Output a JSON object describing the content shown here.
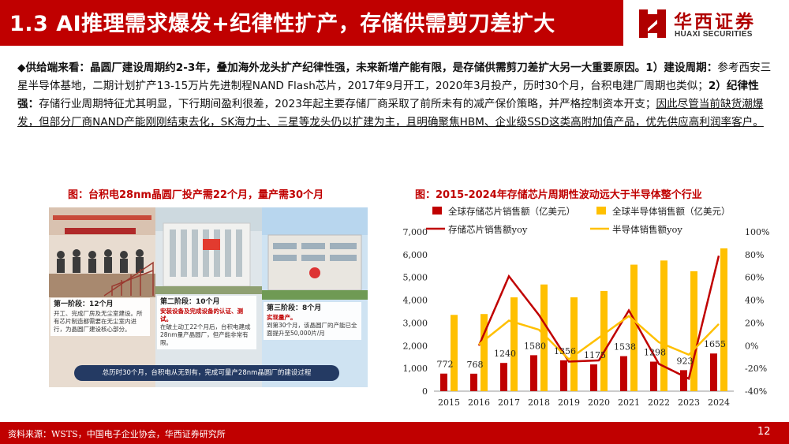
{
  "header": {
    "title": "1.3 AI推理需求爆发+纪律性扩产，存储供需剪刀差扩大"
  },
  "logo": {
    "name_cn": "华西证券",
    "name_en": "HUAXI SECURITIES"
  },
  "body": {
    "bullet": "◆",
    "s1": "供给端来看：晶圆厂建设周期约2-3年，叠加海外龙头扩产纪律性强，未来新增产能有限，是存储供需剪刀差扩大另一大重要原因。",
    "s2": "1）建设周期：",
    "s3": "参考西安三星半导体基地，二期计划扩产13-15万片先进制程NAND Flash芯片，2017年9月开工，2020年3月投产，历时30个月，台积电建厂周期也类似；",
    "s4": "2）纪律性强：",
    "s5": "存储行业周期特征尤其明显，下行期间盈利很差，2023年起主要存储厂商采取了前所未有的减产保价策略，并严格控制资本开支；",
    "s6": "因此尽管当前缺货潮爆发，但部分厂商NAND产能刚刚结束去化，SK海力士、三星等龙头仍以扩建为主，且明确聚焦HBM、企业级SSD这类高附加值产品，优先供应高利润率客户。"
  },
  "figure_left": {
    "caption": "图：台积电28nm晶圆厂投产需22个月，量产需30个月",
    "stages": [
      {
        "title": "第一阶段：12个月",
        "desc": "开工、完成厂房及无尘室建设。所有芯片制造都需要在无尘室内进行，为晶圆厂建设核心部分。",
        "highlight": ""
      },
      {
        "title": "第二阶段：10个月",
        "desc": "在破土动工22个月后，台积电建成28nm量产晶圆厂，但产能非常有限。",
        "highlight": "安装设备及完成设备的认证、测试。"
      },
      {
        "title": "第三阶段：8个月",
        "desc": "到第30个月，该晶圆厂的产能已全面提升至50,000片/月",
        "highlight": "实现量产。"
      }
    ],
    "banner": "总历时30个月，台积电从无到有，完成可量产28nm晶圆厂的建设过程"
  },
  "figure_right": {
    "caption": "图：2015-2024年存储芯片周期性波动远大于半导体整个行业"
  },
  "chart_data": {
    "type": "bar",
    "categories": [
      "2015",
      "2016",
      "2017",
      "2018",
      "2019",
      "2020",
      "2021",
      "2022",
      "2023",
      "2024"
    ],
    "series": [
      {
        "name": "全球存储芯片销售额（亿美元）",
        "kind": "bar",
        "axis": "left",
        "color": "#c00000",
        "values": [
          772,
          768,
          1240,
          1580,
          1356,
          1175,
          1538,
          1298,
          923,
          1655
        ]
      },
      {
        "name": "全球半导体销售额（亿美元）",
        "kind": "bar",
        "axis": "left",
        "color": "#ffc000",
        "values": [
          3352,
          3389,
          4122,
          4688,
          4123,
          4404,
          5559,
          5741,
          5268,
          6276
        ]
      },
      {
        "name": "存储芯片销售额yoy",
        "kind": "line",
        "axis": "right",
        "color": "#c00000",
        "values": [
          null,
          0,
          61,
          27,
          -14,
          -13,
          31,
          -16,
          -29,
          79
        ]
      },
      {
        "name": "半导体销售额yoy",
        "kind": "line",
        "axis": "right",
        "color": "#ffc000",
        "values": [
          null,
          1,
          22,
          14,
          -12,
          7,
          26,
          3,
          -8,
          19
        ]
      }
    ],
    "data_labels": [
      "772",
      "768",
      "1240",
      "1580",
      "1356",
      "1175",
      "1538",
      "1298",
      "923",
      "1655"
    ],
    "ylim": [
      0,
      7000
    ],
    "y_ticks": [
      "0",
      "1,000",
      "2,000",
      "3,000",
      "4,000",
      "5,000",
      "6,000",
      "7,000"
    ],
    "y2lim": [
      -40,
      100
    ],
    "y2_ticks": [
      "-40%",
      "-20%",
      "0%",
      "20%",
      "40%",
      "60%",
      "80%",
      "100%"
    ],
    "grid": false,
    "legend": "top"
  },
  "footer": {
    "source": "资料来源：WSTS，中国电子企业协会，华西证券研究所",
    "page": "12"
  },
  "colors": {
    "brand_red": "#c00000",
    "gold": "#ffc000",
    "banner_blue": "#243a63"
  }
}
